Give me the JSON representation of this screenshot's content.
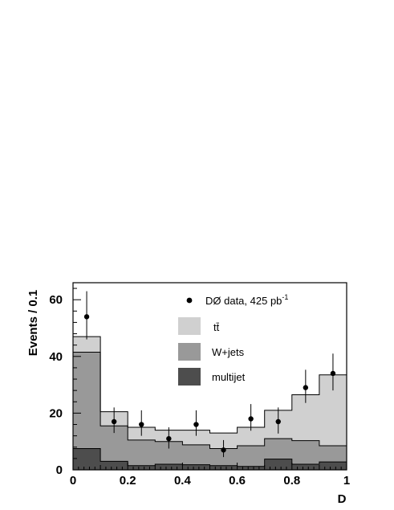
{
  "chart_data": {
    "type": "bar",
    "stacked": true,
    "histogram": true,
    "title": "",
    "xlabel": "D",
    "ylabel": "Events / 0.1",
    "xlim": [
      0,
      1
    ],
    "ylim": [
      0,
      66
    ],
    "bin_edges": [
      0,
      0.1,
      0.2,
      0.3,
      0.4,
      0.5,
      0.6,
      0.7,
      0.8,
      0.9,
      1.0
    ],
    "x_ticks": [
      0,
      0.2,
      0.4,
      0.6,
      0.8,
      1
    ],
    "x_tick_labels": [
      "0",
      "0.2",
      "0.4",
      "0.6",
      "0.8",
      "1"
    ],
    "y_ticks": [
      0,
      20,
      40,
      60
    ],
    "y_tick_labels": [
      "0",
      "20",
      "40",
      "60"
    ],
    "series": [
      {
        "name": "multijet",
        "color": "#4d4d4d",
        "values": [
          7.5,
          3.0,
          1.5,
          2.0,
          1.8,
          1.5,
          1.2,
          3.8,
          2.0,
          2.8
        ]
      },
      {
        "name": "W+jets",
        "color": "#999999",
        "values": [
          34.0,
          12.5,
          9.0,
          8.0,
          7.0,
          6.0,
          7.3,
          7.2,
          8.3,
          5.7
        ]
      },
      {
        "name": "tt̄",
        "color": "#d0d0d0",
        "values": [
          5.5,
          5.0,
          4.5,
          4.0,
          5.2,
          5.5,
          6.5,
          10.0,
          16.2,
          25.0
        ]
      }
    ],
    "data_points": {
      "name": "DØ data, 425 pb",
      "name_superscript": "-1",
      "x": [
        0.05,
        0.15,
        0.25,
        0.35,
        0.45,
        0.55,
        0.65,
        0.75,
        0.85,
        0.95
      ],
      "y": [
        54,
        17,
        16,
        11,
        16,
        7,
        18,
        17,
        29,
        34
      ],
      "err_low": [
        8,
        4,
        4,
        3.5,
        4,
        2.5,
        4.2,
        4.2,
        5.4,
        6
      ],
      "err_high": [
        9,
        5,
        5,
        4,
        5,
        3.5,
        5.2,
        5,
        6.3,
        7
      ]
    },
    "legend": {
      "position": "top-center",
      "order": [
        "data",
        "tt̄",
        "W+jets",
        "multijet"
      ]
    },
    "grid": false
  }
}
